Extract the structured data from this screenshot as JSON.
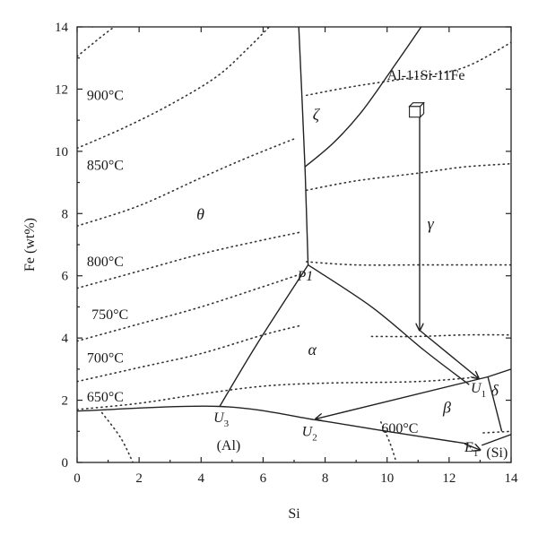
{
  "diagram": {
    "x_axis": {
      "label": "Si",
      "range": [
        0,
        14
      ],
      "ticks": [
        "0",
        "2",
        "4",
        "6",
        "8",
        "10",
        "12",
        "14"
      ]
    },
    "y_axis": {
      "label": "Fe (wt%)",
      "range": [
        0,
        14
      ],
      "ticks": [
        "0",
        "2",
        "4",
        "6",
        "8",
        "10",
        "12",
        "14"
      ]
    },
    "isotherm_labels": [
      {
        "text": "900°C",
        "x": 0.2,
        "y": 11.8
      },
      {
        "text": "850°C",
        "x": 0.2,
        "y": 9.55
      },
      {
        "text": "800°C",
        "x": 0.2,
        "y": 6.45
      },
      {
        "text": "750°C",
        "x": 0.35,
        "y": 4.75
      },
      {
        "text": "700°C",
        "x": 0.2,
        "y": 3.35
      },
      {
        "text": "650°C",
        "x": 0.2,
        "y": 2.1
      },
      {
        "text": "600°C",
        "x": 9.7,
        "y": 1.1
      }
    ],
    "isotherms": [
      [
        [
          0,
          10.1
        ],
        [
          1.5,
          10.75
        ],
        [
          3,
          11.5
        ],
        [
          4.5,
          12.4
        ],
        [
          5.5,
          13.3
        ],
        [
          6.2,
          14
        ]
      ],
      [
        [
          0,
          7.6
        ],
        [
          2,
          8.25
        ],
        [
          4,
          9.15
        ],
        [
          5.5,
          9.8
        ],
        [
          7,
          10.4
        ]
      ],
      [
        [
          0,
          5.6
        ],
        [
          2,
          6.15
        ],
        [
          4,
          6.7
        ],
        [
          6,
          7.15
        ],
        [
          7.2,
          7.4
        ]
      ],
      [
        [
          0,
          3.9
        ],
        [
          2,
          4.45
        ],
        [
          4,
          5.0
        ],
        [
          6,
          5.65
        ],
        [
          7.2,
          6.05
        ]
      ],
      [
        [
          0,
          2.6
        ],
        [
          2,
          3.05
        ],
        [
          4,
          3.5
        ],
        [
          6,
          4.1
        ],
        [
          7.2,
          4.4
        ]
      ],
      [
        [
          0,
          1.7
        ],
        [
          2,
          1.9
        ],
        [
          4,
          2.2
        ],
        [
          6,
          2.45
        ],
        [
          8,
          2.55
        ],
        [
          11,
          2.6
        ],
        [
          13,
          2.75
        ]
      ],
      [
        [
          0.5,
          14
        ],
        [
          1.1,
          14.4
        ]
      ],
      [
        [
          0,
          13.05
        ],
        [
          0.8,
          13.7
        ],
        [
          1.2,
          14
        ]
      ],
      [
        [
          7.4,
          11.8
        ],
        [
          9,
          12.1
        ],
        [
          11,
          12.4
        ],
        [
          12.5,
          12.7
        ],
        [
          14,
          13.5
        ]
      ],
      [
        [
          7.4,
          8.75
        ],
        [
          9,
          9.05
        ],
        [
          11,
          9.3
        ],
        [
          12.5,
          9.5
        ],
        [
          14,
          9.6
        ]
      ],
      [
        [
          7.4,
          6.45
        ],
        [
          9,
          6.35
        ],
        [
          11,
          6.35
        ],
        [
          12.5,
          6.35
        ],
        [
          14,
          6.35
        ]
      ],
      [
        [
          9.5,
          4.05
        ],
        [
          11,
          4.05
        ],
        [
          12.5,
          4.1
        ],
        [
          14,
          4.1
        ]
      ],
      [
        [
          0.8,
          1.6
        ],
        [
          1.4,
          0.8
        ],
        [
          1.8,
          0
        ]
      ],
      [
        [
          9.8,
          1.3
        ],
        [
          10.1,
          0.6
        ],
        [
          10.3,
          0
        ]
      ],
      [
        [
          13.1,
          0.95
        ],
        [
          14,
          1.0
        ]
      ]
    ],
    "phase_lines": [
      [
        [
          7.15,
          14
        ],
        [
          7.35,
          9.5
        ],
        [
          7.45,
          6.35
        ]
      ],
      [
        [
          7.35,
          9.5
        ],
        [
          8.3,
          10.3
        ],
        [
          9.2,
          11.3
        ],
        [
          10.2,
          12.7
        ],
        [
          11.1,
          14
        ]
      ],
      [
        [
          7.45,
          6.35
        ],
        [
          5.8,
          3.8
        ],
        [
          4.6,
          1.8
        ]
      ],
      [
        [
          7.45,
          6.35
        ],
        [
          9.5,
          5.0
        ],
        [
          11.2,
          3.6
        ],
        [
          12.65,
          2.5
        ]
      ],
      [
        [
          0,
          1.65
        ],
        [
          4.6,
          1.8
        ],
        [
          7.8,
          1.35
        ],
        [
          10,
          1.0
        ],
        [
          12.6,
          0.6
        ]
      ],
      [
        [
          13.05,
          0.55
        ],
        [
          14,
          0.9
        ]
      ],
      [
        [
          13.25,
          2.75
        ],
        [
          14,
          3.0
        ]
      ],
      [
        [
          13.25,
          2.75
        ],
        [
          13.7,
          1.0
        ]
      ]
    ],
    "arrow_lines": [
      {
        "from": [
          11.05,
          11.2
        ],
        "to": [
          11.05,
          4.25
        ]
      },
      {
        "from": [
          11.05,
          4.25
        ],
        "to": [
          12.95,
          2.7
        ]
      },
      {
        "from": [
          13.25,
          2.75
        ],
        "to": [
          7.7,
          1.4
        ]
      },
      {
        "from": [
          12.5,
          0.6
        ],
        "to": [
          13.0,
          0.4
        ]
      }
    ],
    "crystal_marker": {
      "x": 10.95,
      "y": 11.3
    },
    "point_labels": [
      {
        "text": "P1",
        "x": 7.1,
        "y": 5.85
      },
      {
        "text": "U",
        "sub": "1",
        "x": 12.7,
        "y": 2.25
      },
      {
        "text": "U",
        "sub": "2",
        "x": 7.25,
        "y": 0.85
      },
      {
        "text": "U",
        "sub": "3",
        "x": 4.4,
        "y": 1.3
      },
      {
        "text": "E",
        "sub": "1",
        "x": 12.5,
        "y": 0.35
      }
    ],
    "region_labels": [
      {
        "text": "ζ",
        "x": 7.6,
        "y": 11.0
      },
      {
        "text": "θ",
        "x": 3.85,
        "y": 7.8
      },
      {
        "text": "γ",
        "x": 11.3,
        "y": 7.5
      },
      {
        "text": "α",
        "x": 7.45,
        "y": 3.45
      },
      {
        "text": "β",
        "x": 11.8,
        "y": 1.6
      },
      {
        "text": "δ",
        "x": 13.35,
        "y": 2.15
      }
    ],
    "phase_labels": [
      {
        "text": "(Al)",
        "x": 4.5,
        "y": 0.4
      },
      {
        "text": "(Si)",
        "x": 13.2,
        "y": 0.18
      }
    ],
    "composition_label": {
      "text": "Al-11Si-11Fe",
      "x": 10.0,
      "y": 12.3
    }
  }
}
